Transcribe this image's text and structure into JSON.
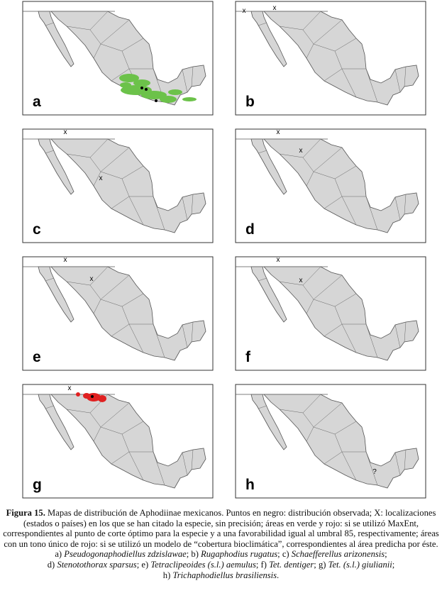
{
  "panels": [
    {
      "label": "a",
      "markers": []
    },
    {
      "label": "b",
      "markers": [
        "x",
        "x"
      ]
    },
    {
      "label": "c",
      "markers": [
        "x",
        "x"
      ]
    },
    {
      "label": "d",
      "markers": [
        "x",
        "x"
      ]
    },
    {
      "label": "e",
      "markers": [
        "x",
        "x"
      ]
    },
    {
      "label": "f",
      "markers": [
        "x",
        "x"
      ]
    },
    {
      "label": "g",
      "markers": [
        "x"
      ]
    },
    {
      "label": "h",
      "markers": [
        "?"
      ]
    }
  ],
  "caption": {
    "title": "Figura 15.",
    "text": "Mapas de distribución de Aphodiinae mexicanos. Puntos en negro: distribución observada; X: localizaciones (estados o países) en los que se han citado la especie, sin precisión; áreas en verde y rojo: si se utilizó MaxEnt, correspondientes al punto de corte óptimo para la especie y a una favorabilidad igual al umbral 85, respectivamente; áreas con un tono único de rojo: si se utilizó un modelo de “cobertura bioclimática”, correspondientes al área predicha por éste.",
    "species": [
      {
        "letter": "a)",
        "name": "Pseudogonaphodiellus zdzislawae",
        "after": ";"
      },
      {
        "letter": "b)",
        "name": "Rugaphodius rugatus",
        "after": ";"
      },
      {
        "letter": "c)",
        "name": "Schaefferellus arizonensis",
        "after": ";"
      },
      {
        "letter": "d)",
        "name": "Stenotothorax sparsus",
        "after": ";"
      },
      {
        "letter": "e)",
        "name": "Tetraclipeoides (s.l.) aemulus",
        "after": ";"
      },
      {
        "letter": "f)",
        "name": "Tet. dentiger",
        "after": ";"
      },
      {
        "letter": "g)",
        "name": "Tet. (s.l.) giulianii",
        "after": ";"
      },
      {
        "letter": "h)",
        "name": "Trichaphodiellus brasiliensis",
        "after": "."
      }
    ]
  }
}
